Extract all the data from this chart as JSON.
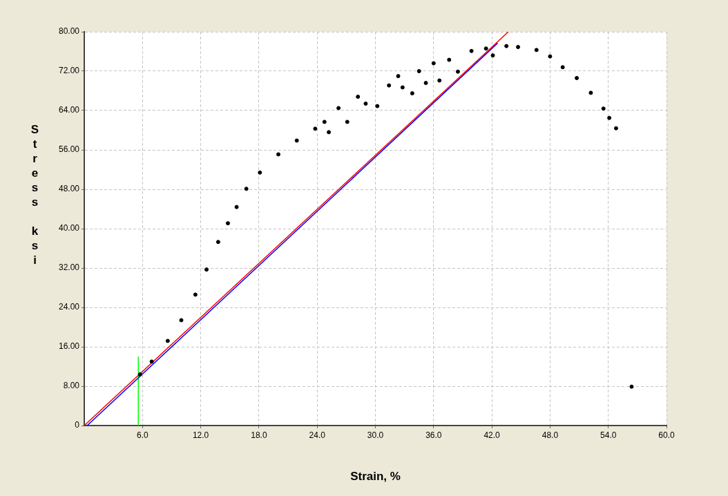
{
  "chart_data": {
    "type": "scatter",
    "xlabel": "Strain, %",
    "ylabel": "Stress ksi",
    "xlim": [
      0,
      60
    ],
    "ylim": [
      0,
      80
    ],
    "xticks": [
      {
        "value": 6,
        "label": "6.0"
      },
      {
        "value": 12,
        "label": "12.0"
      },
      {
        "value": 18,
        "label": "18.0"
      },
      {
        "value": 24,
        "label": "24.0"
      },
      {
        "value": 30,
        "label": "30.0"
      },
      {
        "value": 36,
        "label": "36.0"
      },
      {
        "value": 42,
        "label": "42.0"
      },
      {
        "value": 48,
        "label": "48.0"
      },
      {
        "value": 54,
        "label": "54.0"
      },
      {
        "value": 60,
        "label": "60.0"
      }
    ],
    "yticks": [
      0,
      {
        "value": 8,
        "label": "8.00"
      },
      {
        "value": 16,
        "label": "16.00"
      },
      {
        "value": 24,
        "label": "24.00"
      },
      {
        "value": 32,
        "label": "32.00"
      },
      {
        "value": 40,
        "label": "40.00"
      },
      {
        "value": 48,
        "label": "48.00"
      },
      {
        "value": 56,
        "label": "56.00"
      },
      {
        "value": 64,
        "label": "64.00"
      },
      {
        "value": 72,
        "label": "72.00"
      },
      {
        "value": 80,
        "label": "80.00"
      }
    ],
    "grid": true,
    "series": [
      {
        "type": "scatter",
        "marker": "circle",
        "color": "#000000",
        "x": [
          5.75,
          6.95,
          8.6,
          10.0,
          11.45,
          12.6,
          13.8,
          14.8,
          15.7,
          16.7,
          18.1,
          20.0,
          21.9,
          23.8,
          24.75,
          25.2,
          26.2,
          27.1,
          28.2,
          29.0,
          30.2,
          31.4,
          32.35,
          32.8,
          33.8,
          34.5,
          35.2,
          36.0,
          36.6,
          37.6,
          38.5,
          39.9,
          41.4,
          42.1,
          43.5,
          44.7,
          46.6,
          48.0,
          49.3,
          50.75,
          52.2,
          53.5,
          54.1,
          54.8,
          56.4
        ],
        "values": [
          10.4,
          13.0,
          17.2,
          21.4,
          26.6,
          31.7,
          37.3,
          41.1,
          44.4,
          48.1,
          51.4,
          55.1,
          57.9,
          60.3,
          61.7,
          59.6,
          64.5,
          61.7,
          66.8,
          65.4,
          64.9,
          69.1,
          71.0,
          68.7,
          67.5,
          72.0,
          69.6,
          73.6,
          70.1,
          74.3,
          71.9,
          76.1,
          76.6,
          75.2,
          77.1,
          76.9,
          76.3,
          75.0,
          72.8,
          70.6,
          67.6,
          64.4,
          62.5,
          60.4,
          7.9
        ]
      },
      {
        "type": "line",
        "marker": "none",
        "color": "#ff0000",
        "x": [
          0,
          43.7
        ],
        "values": [
          0,
          80
        ]
      },
      {
        "type": "line",
        "marker": "none",
        "color": "#0000ff",
        "x": [
          0.3,
          42.6
        ],
        "values": [
          0,
          77.7
        ]
      },
      {
        "type": "line",
        "marker": "none",
        "color": "#00ff00",
        "x": [
          5.57,
          5.57
        ],
        "values": [
          0,
          14
        ]
      }
    ]
  }
}
